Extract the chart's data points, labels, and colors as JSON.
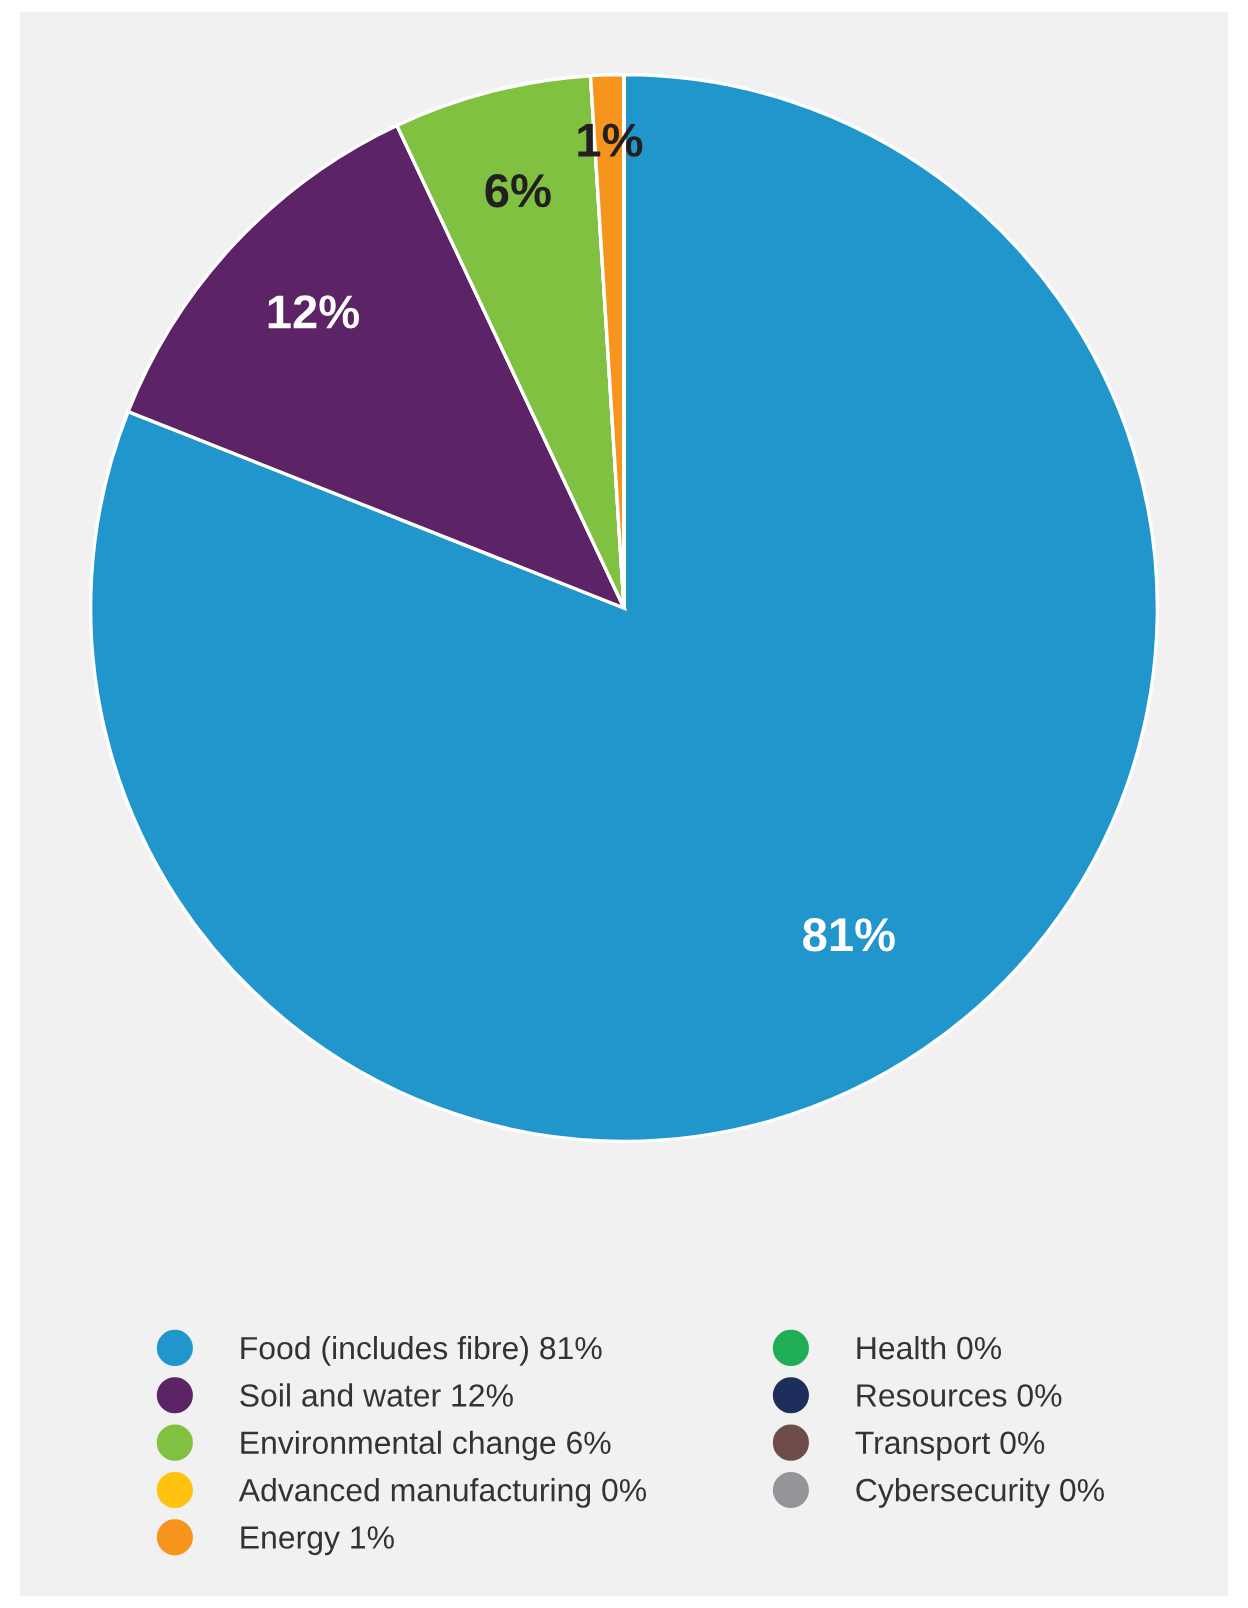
{
  "chart_data": {
    "type": "pie",
    "categories": [
      "Food (includes fibre) 81%",
      "Soil and water 12%",
      "Environmental change 6%",
      "Advanced manufacturing 0%",
      "Energy 1%",
      "Health 0%",
      "Resources 0%",
      "Transport 0%",
      "Cybersecurity 0%"
    ],
    "values": [
      81,
      12,
      6,
      0,
      1,
      0,
      0,
      0,
      0
    ],
    "colors": [
      "#2196cc",
      "#5c2366",
      "#80c142",
      "#ffc20e",
      "#f7941d",
      "#1fad55",
      "#1d2d5c",
      "#6d4c4a",
      "#939598"
    ],
    "value_labels": [
      "81%",
      "12%",
      "6%",
      null,
      "1%",
      null,
      null,
      null,
      null
    ],
    "legend": "bottom"
  }
}
